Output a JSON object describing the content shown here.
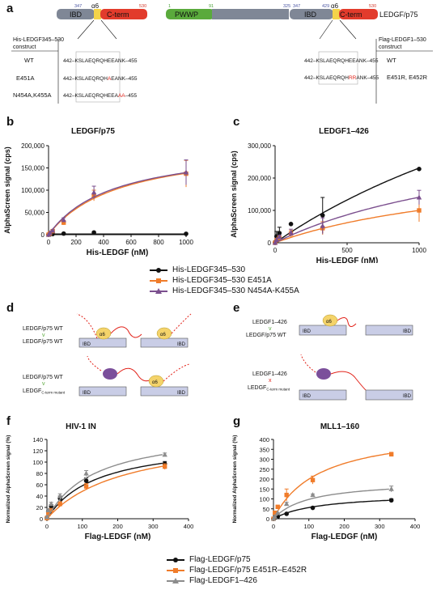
{
  "panels": {
    "a": "a",
    "b": "b",
    "c": "c",
    "d": "d",
    "e": "e",
    "f": "f",
    "g": "g"
  },
  "colors": {
    "black": "#111111",
    "orange": "#f07c2a",
    "purple": "#7b4f8e",
    "gray": "#8c8c8c",
    "ibd": "#7f8796",
    "alpha6": "#f3d34a",
    "cterm": "#e23b2c",
    "pwwp": "#5aaa3c",
    "mutation": "#e2231a",
    "domainbox": "#c9cde6",
    "helix": "#f4d36a",
    "helixmut": "#7b4f9b"
  },
  "panel_a": {
    "left_bar": {
      "n1": "347",
      "n2": "530",
      "ibd": "IBD",
      "alpha": "α6",
      "cterm": "C-term"
    },
    "right_bar": {
      "n1": "1",
      "n2": "91",
      "n3": "325",
      "n4": "347",
      "n5": "429",
      "n6": "530",
      "pwwp": "PWWP",
      "ibd": "IBD",
      "alpha": "α6",
      "cterm": "C-term",
      "protein": "LEDGF/p75"
    },
    "left_header": [
      "His-LEDGF345–530",
      "construct"
    ],
    "right_header": [
      "Flag-LEDGF1–530",
      "construct"
    ],
    "left_rows": [
      {
        "label": "WT",
        "pre": "442–",
        "seq_a": "KSLAEQRQHEEANK",
        "seq_m": "",
        "seq_b": "",
        "post": "–455"
      },
      {
        "label": "E451A",
        "pre": "442–",
        "seq_a": "KSLAEQRQH",
        "seq_m": "A",
        "seq_b": "EANK",
        "post": "–455"
      },
      {
        "label": "N454A,K455A",
        "pre": "442–",
        "seq_a": "KSLAEQRQHEEA",
        "seq_m": "AA",
        "seq_b": "",
        "post": "–455"
      }
    ],
    "right_rows": [
      {
        "label": "WT",
        "pre": "442–",
        "seq_a": "KSLAEQRQHEEANK",
        "seq_m": "",
        "seq_b": "",
        "post": "–455"
      },
      {
        "label": "E451R, E452R",
        "pre": "442–",
        "seq_a": "KSLAEQRQH",
        "seq_m": "RR",
        "seq_b": "ANK",
        "post": "–455"
      }
    ]
  },
  "panel_d": {
    "top_label1": "LEDGF/p75 WT",
    "top_sym": "v",
    "top_label2": "LEDGF/p75 WT",
    "bot_label1": "LEDGF/p75 WT",
    "bot_sym": "v",
    "bot_label2": "LEDGF",
    "bot_label2_sub": "C-term mutant",
    "ibd": "IBD",
    "alpha": "α6"
  },
  "panel_e": {
    "top_label1": "LEDGF1–426",
    "top_sym": "v",
    "top_label2": "LEDGF/p75 WT",
    "bot_label1": "LEDGF1–426",
    "bot_sym": "x",
    "bot_label2": "LEDGF",
    "bot_label2_sub": "C-term mutant",
    "ibd": "IBD",
    "alpha": "α6"
  },
  "legend_bc": [
    {
      "name": "His-LEDGF345–530",
      "color": "#111111",
      "marker": "circle"
    },
    {
      "name": "His-LEDGF345–530 E451A",
      "color": "#f07c2a",
      "marker": "square"
    },
    {
      "name": "His-LEDGF345–530 N454A-K455A",
      "color": "#7b4f8e",
      "marker": "triangle"
    }
  ],
  "legend_fg": [
    {
      "name": "Flag-LEDGF/p75",
      "color": "#111111",
      "marker": "circle"
    },
    {
      "name": "Flag-LEDGF/p75 E451R–E452R",
      "color": "#f07c2a",
      "marker": "square"
    },
    {
      "name": "Flag-LEDGF1–426",
      "color": "#8c8c8c",
      "marker": "triangle"
    }
  ],
  "chart_data": [
    {
      "id": "b",
      "type": "scatter",
      "title": "LEDGF/p75",
      "xlabel": "His-LEDGF (nM)",
      "ylabel": "AlphaScreen signal (cps)",
      "xlim": [
        0,
        1000
      ],
      "ylim": [
        0,
        200000
      ],
      "xticks": [
        0,
        200,
        400,
        600,
        800,
        1000
      ],
      "yticks": [
        0,
        50000,
        100000,
        150000,
        200000
      ],
      "ytick_labels": [
        "0",
        "50,000",
        "100,000",
        "150,000",
        "200,000"
      ],
      "series": [
        {
          "color": "#111111",
          "marker": "circle",
          "x": [
            0,
            10,
            30,
            110,
            330,
            1000
          ],
          "y": [
            500,
            1000,
            1500,
            2500,
            5000,
            2000
          ],
          "err": [
            0,
            0,
            0,
            0,
            0,
            0
          ],
          "fit": "flat",
          "fit_y": 1500
        },
        {
          "color": "#f07c2a",
          "marker": "square",
          "x": [
            0,
            10,
            30,
            110,
            330,
            1000
          ],
          "y": [
            0,
            3000,
            8000,
            27000,
            88000,
            137000
          ],
          "err": [
            0,
            0,
            2000,
            5000,
            12000,
            30000
          ],
          "fit": "hyper",
          "bmax": 210000,
          "kd": 520
        },
        {
          "color": "#7b4f8e",
          "marker": "triangle",
          "x": [
            0,
            10,
            30,
            110,
            330,
            1000
          ],
          "y": [
            0,
            4000,
            9000,
            33000,
            95000,
            140000
          ],
          "err": [
            0,
            0,
            2000,
            5000,
            14000,
            28000
          ],
          "fit": "hyper",
          "bmax": 205000,
          "kd": 470
        }
      ]
    },
    {
      "id": "c",
      "type": "scatter",
      "title": "LEDGF1–426",
      "xlabel": "His-LEDGF (nM)",
      "ylabel": "AlphaScreen signal (cps)",
      "xlim": [
        0,
        1000
      ],
      "ylim": [
        0,
        300000
      ],
      "xticks": [
        0,
        500,
        1000
      ],
      "yticks": [
        0,
        100000,
        200000,
        300000
      ],
      "ytick_labels": [
        "0",
        "100,000",
        "200,000",
        "300,000"
      ],
      "series": [
        {
          "color": "#111111",
          "marker": "circle",
          "x": [
            0,
            10,
            30,
            110,
            330,
            1000
          ],
          "y": [
            2000,
            20000,
            30000,
            58000,
            85000,
            228000
          ],
          "err": [
            0,
            15000,
            18000,
            0,
            55000,
            0
          ],
          "fit": "hyper",
          "bmax": 900000,
          "kd": 2900
        },
        {
          "color": "#f07c2a",
          "marker": "square",
          "x": [
            0,
            10,
            30,
            110,
            330,
            1000
          ],
          "y": [
            0,
            8000,
            15000,
            28000,
            45000,
            100000
          ],
          "err": [
            0,
            0,
            5000,
            10000,
            20000,
            35000
          ],
          "fit": "hyper",
          "bmax": 260000,
          "kd": 1600
        },
        {
          "color": "#7b4f8e",
          "marker": "triangle",
          "x": [
            0,
            10,
            30,
            110,
            330,
            1000
          ],
          "y": [
            0,
            10000,
            18000,
            32000,
            52000,
            140000
          ],
          "err": [
            0,
            0,
            5000,
            10000,
            25000,
            22000
          ],
          "fit": "hyper",
          "bmax": 380000,
          "kd": 1700
        }
      ]
    },
    {
      "id": "f",
      "type": "scatter",
      "title": "HIV-1 IN",
      "xlabel": "Flag-LEDGF (nM)",
      "ylabel": "Normalized AlphaScreen signal (%)",
      "xlim": [
        0,
        400
      ],
      "ylim": [
        0,
        140
      ],
      "xticks": [
        0,
        100,
        200,
        300,
        400
      ],
      "yticks": [
        0,
        20,
        40,
        60,
        80,
        100,
        120,
        140
      ],
      "ytick_labels": [
        "0",
        "20",
        "40",
        "60",
        "80",
        "100",
        "120",
        "140"
      ],
      "series": [
        {
          "color": "#111111",
          "marker": "circle",
          "x": [
            0,
            4,
            12,
            37,
            111,
            333
          ],
          "y": [
            2,
            12,
            22,
            36,
            67,
            97
          ],
          "err": [
            0,
            2,
            3,
            4,
            5,
            4
          ],
          "fit": "hyper",
          "bmax": 140,
          "kd": 140
        },
        {
          "color": "#f07c2a",
          "marker": "square",
          "x": [
            0,
            4,
            12,
            37,
            111,
            333
          ],
          "y": [
            1,
            8,
            15,
            26,
            57,
            92
          ],
          "err": [
            0,
            2,
            3,
            4,
            5,
            5
          ],
          "fit": "hyper",
          "bmax": 155,
          "kd": 220
        },
        {
          "color": "#8c8c8c",
          "marker": "triangle",
          "x": [
            0,
            4,
            12,
            37,
            111,
            333
          ],
          "y": [
            3,
            15,
            26,
            40,
            80,
            113
          ],
          "err": [
            0,
            2,
            3,
            4,
            5,
            3
          ],
          "fit": "hyper",
          "bmax": 160,
          "kd": 135
        }
      ]
    },
    {
      "id": "g",
      "type": "scatter",
      "title": "MLL1–160",
      "xlabel": "Flag-LEDGF (nM)",
      "ylabel": "Normalized AlphaScreen signal (%)",
      "xlim": [
        0,
        400
      ],
      "ylim": [
        0,
        400
      ],
      "xticks": [
        0,
        100,
        200,
        300,
        400
      ],
      "yticks": [
        0,
        50,
        100,
        150,
        200,
        250,
        300,
        350,
        400
      ],
      "ytick_labels": [
        "0",
        "50",
        "100",
        "150",
        "200",
        "250",
        "300",
        "350",
        "400"
      ],
      "series": [
        {
          "color": "#111111",
          "marker": "circle",
          "x": [
            0,
            4,
            12,
            37,
            111,
            333
          ],
          "y": [
            0,
            5,
            10,
            25,
            55,
            93
          ],
          "err": [
            0,
            0,
            0,
            0,
            5,
            8
          ],
          "fit": "hyper",
          "bmax": 130,
          "kd": 130
        },
        {
          "color": "#f07c2a",
          "marker": "square",
          "x": [
            0,
            4,
            12,
            37,
            111,
            333
          ],
          "y": [
            0,
            30,
            60,
            120,
            195,
            325
          ],
          "err": [
            0,
            0,
            0,
            30,
            20,
            10
          ],
          "fit": "hyper",
          "bmax": 460,
          "kd": 130
        },
        {
          "color": "#8c8c8c",
          "marker": "triangle",
          "x": [
            0,
            4,
            12,
            37,
            111,
            333
          ],
          "y": [
            0,
            10,
            30,
            75,
            120,
            150
          ],
          "err": [
            0,
            0,
            0,
            8,
            5,
            15
          ],
          "fit": "hyper",
          "bmax": 195,
          "kd": 100
        }
      ]
    }
  ]
}
